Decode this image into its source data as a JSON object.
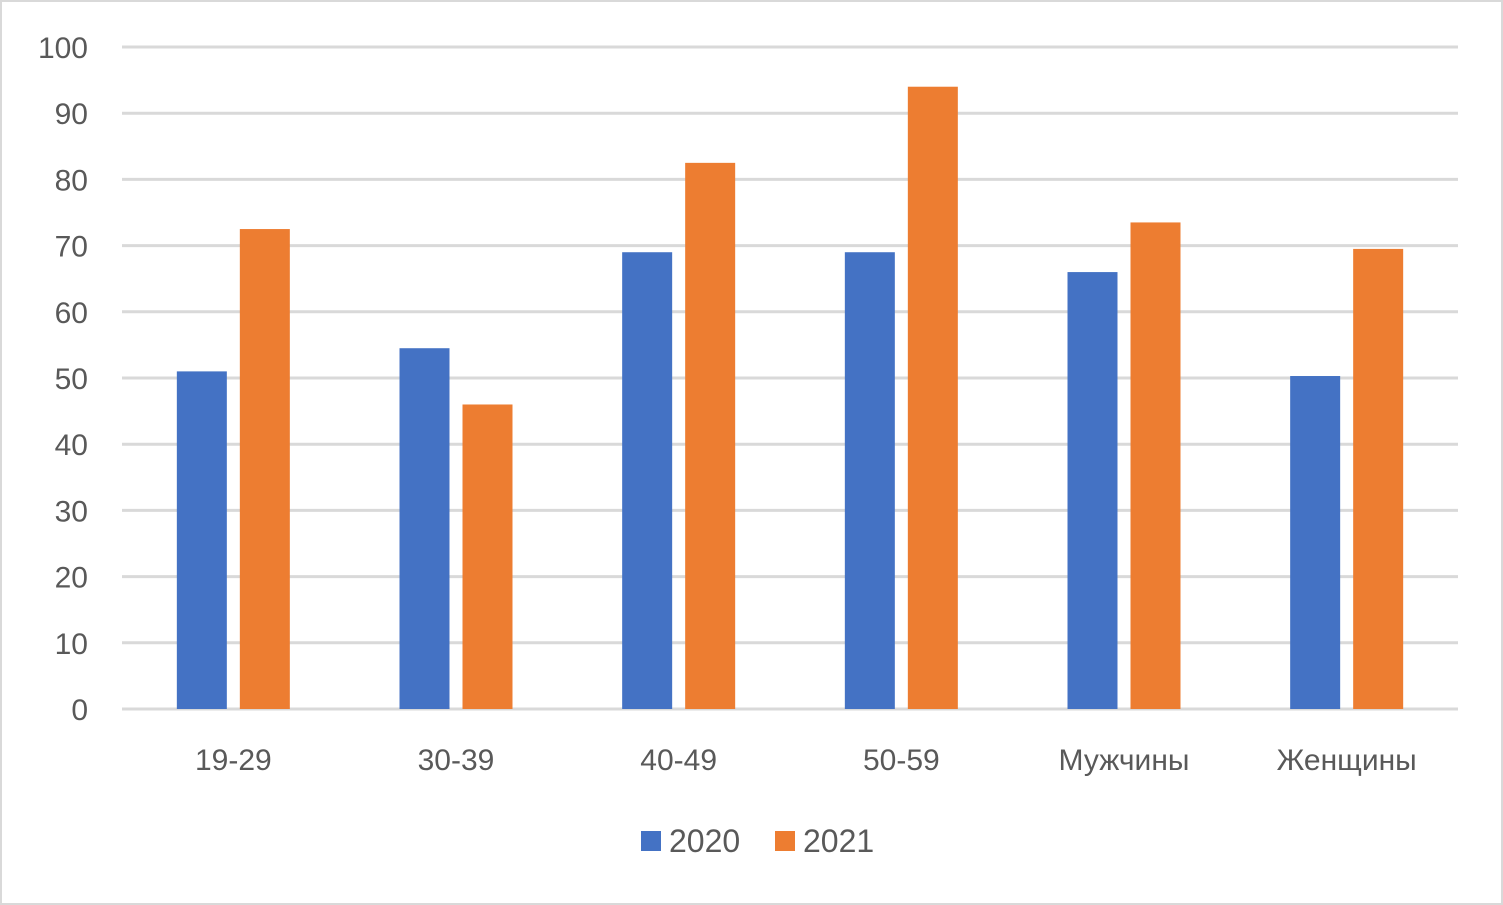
{
  "chart_data": {
    "type": "bar",
    "categories": [
      "19-29",
      "30-39",
      "40-49",
      "50-59",
      "Мужчины",
      "Женщины"
    ],
    "series": [
      {
        "name": "2020",
        "values": [
          51,
          54.5,
          69,
          69,
          66,
          50.3
        ],
        "color": "#4472c4"
      },
      {
        "name": "2021",
        "values": [
          72.5,
          46,
          82.5,
          94,
          73.5,
          69.5
        ],
        "color": "#ed7d31"
      }
    ],
    "ylim": [
      0,
      100
    ],
    "yticks": [
      0,
      10,
      20,
      30,
      40,
      50,
      60,
      70,
      80,
      90,
      100
    ],
    "grid": true,
    "legend_position": "bottom",
    "gridline_color": "#d9d9d9"
  }
}
